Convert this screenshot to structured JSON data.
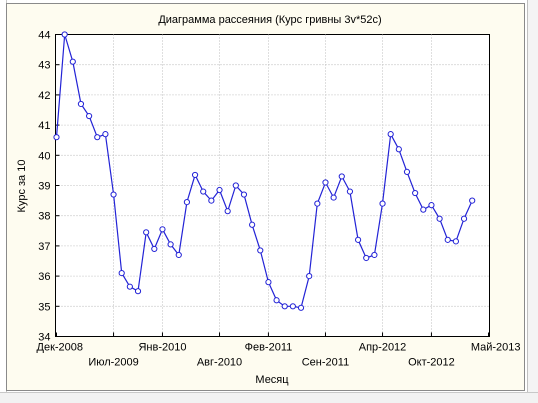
{
  "chart_data": {
    "type": "line",
    "title": "Диаграмма рассеяния (Курс гривны 3v*52c)",
    "xlabel": "Месяц",
    "ylabel": "Курс за 10",
    "ylim": [
      34,
      44
    ],
    "yticks": [
      34,
      35,
      36,
      37,
      38,
      39,
      40,
      41,
      42,
      43,
      44
    ],
    "xlim": [
      0,
      53
    ],
    "xticks": [
      {
        "i": 0,
        "label": "Дек-2008",
        "row": 1
      },
      {
        "i": 7,
        "label": "Июл-2009",
        "row": 2
      },
      {
        "i": 13,
        "label": "Янв-2010",
        "row": 1
      },
      {
        "i": 20,
        "label": "Авг-2010",
        "row": 2
      },
      {
        "i": 26,
        "label": "Фев-2011",
        "row": 1
      },
      {
        "i": 33,
        "label": "Сен-2011",
        "row": 2
      },
      {
        "i": 40,
        "label": "Апр-2012",
        "row": 1
      },
      {
        "i": 46,
        "label": "Окт-2012",
        "row": 2
      },
      {
        "i": 53,
        "label": "Май-2013",
        "row": 1
      }
    ],
    "grid": true,
    "line_color": "#2323d6",
    "values": [
      40.6,
      44.0,
      43.1,
      41.7,
      41.3,
      40.6,
      40.7,
      38.7,
      36.1,
      35.65,
      35.5,
      37.45,
      36.9,
      37.55,
      37.05,
      36.7,
      38.45,
      39.35,
      38.8,
      38.5,
      38.85,
      38.15,
      39.0,
      38.7,
      37.7,
      36.85,
      35.8,
      35.2,
      35.0,
      35.0,
      34.95,
      36.0,
      38.4,
      39.1,
      38.6,
      39.3,
      38.8,
      37.2,
      36.6,
      36.7,
      38.4,
      40.7,
      40.2,
      39.45,
      38.75,
      38.2,
      38.35,
      37.9,
      37.2,
      37.15,
      37.9,
      38.5
    ]
  }
}
